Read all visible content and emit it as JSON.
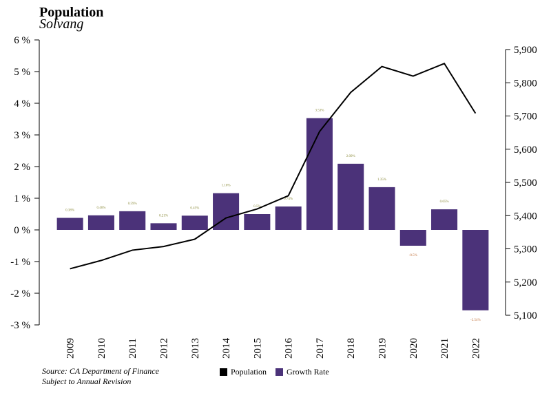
{
  "header": {
    "title": "Population",
    "subtitle": "Solvang"
  },
  "footer": {
    "source_line1": "Source: CA Department of Finance",
    "source_line2": "Subject to Annual Revision"
  },
  "legend": [
    {
      "label": "Population",
      "color": "#000000"
    },
    {
      "label": "Growth Rate",
      "color": "#4b3279"
    }
  ],
  "chart_data": {
    "type": "bar",
    "categories": [
      "2009",
      "2010",
      "2011",
      "2012",
      "2013",
      "2014",
      "2015",
      "2016",
      "2017",
      "2018",
      "2019",
      "2020",
      "2021",
      "2022"
    ],
    "series": [
      {
        "name": "Growth Rate",
        "type": "bar",
        "axis": "left",
        "values": [
          0.38,
          0.46,
          0.59,
          0.21,
          0.45,
          1.16,
          0.5,
          0.74,
          3.53,
          2.09,
          1.35,
          -0.5,
          0.65,
          -2.54
        ],
        "labels": [
          "0.38%",
          "0.46%",
          "0.59%",
          "0.21%",
          "0.45%",
          "1.16%",
          "0.5%",
          "0.74%",
          "3.53%",
          "2.09%",
          "1.35%",
          "-0.5%",
          "0.65%",
          "-2.54%"
        ],
        "color": "#4b3279"
      },
      {
        "name": "Population",
        "type": "line",
        "axis": "right",
        "values": [
          5240,
          5265,
          5296,
          5307,
          5329,
          5393,
          5420,
          5460,
          5653,
          5771,
          5849,
          5820,
          5858,
          5708
        ],
        "color": "#000000"
      }
    ],
    "y_left": {
      "ylim": [
        -3,
        6
      ],
      "ticks": [
        -3,
        -2,
        -1,
        0,
        1,
        2,
        3,
        4,
        5,
        6
      ],
      "tick_labels": [
        "-3 %",
        "-2 %",
        "-1 %",
        "0 %",
        "1 %",
        "2 %",
        "3 %",
        "4 %",
        "5 %",
        "6 %"
      ]
    },
    "y_right": {
      "ylim": [
        5100,
        5900
      ],
      "ticks": [
        5100,
        5200,
        5300,
        5400,
        5500,
        5600,
        5700,
        5800,
        5900
      ],
      "tick_labels": [
        "5,100",
        "5,200",
        "5,300",
        "5,400",
        "5,500",
        "5,600",
        "5,700",
        "5,800",
        "5,900"
      ]
    },
    "positive_label_color": "#8a8a3a",
    "negative_label_color": "#c0703a",
    "grid": false,
    "legend_position": "bottom-center"
  }
}
